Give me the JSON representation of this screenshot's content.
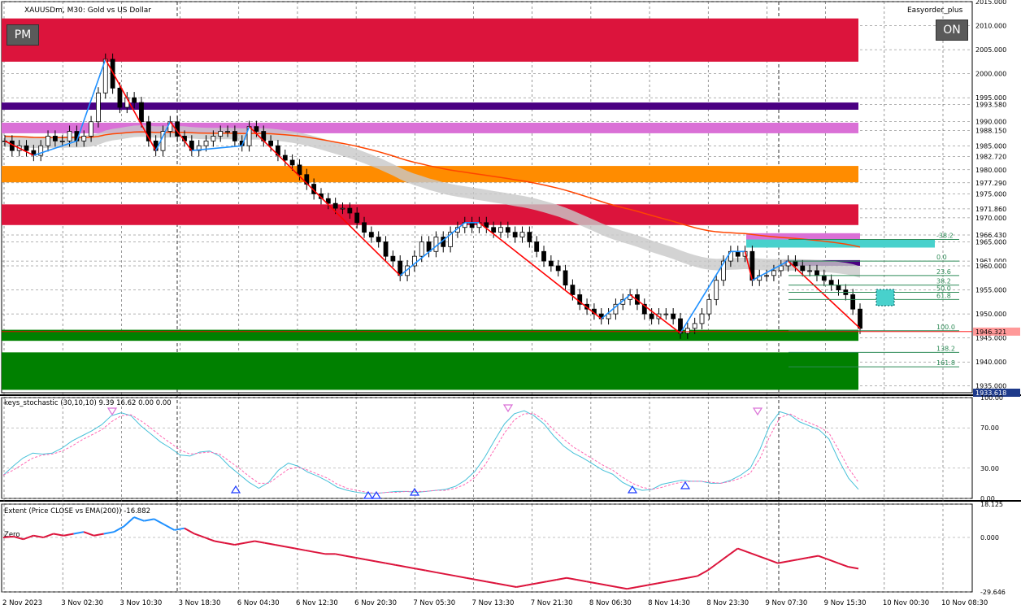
{
  "header": {
    "symbol_text": "XAUUSDm, M30:  Gold vs US Dollar",
    "expert": "Easyorder_plus",
    "pm_button": "PM",
    "on_button": "ON"
  },
  "colors": {
    "bull_candle": "#000000",
    "red_zone": "#dc143c",
    "green_zone": "#008000",
    "orange_zone": "#ff8c00",
    "violet_zone": "#da70d6",
    "indigo_zone": "#4b0082",
    "cyan_zone": "#48d1cc",
    "zigzag_down": "#ff0000",
    "zigzag_up": "#1e90ff",
    "ema": "#ff4500",
    "band": "#c8c8c8",
    "stoch_main": "#48c1d9",
    "stoch_signal": "#ff69b4",
    "extent_neg": "#dc143c",
    "extent_pos": "#1e90ff",
    "bid_line": "#ff0000"
  },
  "chart_data": [
    {
      "type": "candlestick",
      "title": "XAUUSDm, M30:  Gold vs US Dollar",
      "ylim": [
        1933.6,
        2015.0
      ],
      "y_ticks": [
        "2015.000",
        "2010.000",
        "2005.000",
        "2000.000",
        "1995.000",
        "1993.580",
        "1990.000",
        "1988.150",
        "1985.000",
        "1982.720",
        "1980.000",
        "1977.290",
        "1975.000",
        "1971.860",
        "1970.000",
        "1966.430",
        "1965.000",
        "1961.000",
        "1960.000",
        "1955.000",
        "1950.000",
        "1945.000",
        "1940.000",
        "1935.000"
      ],
      "current_price_box": "1946.321",
      "low_price_box": "1933.618",
      "x_ticks": [
        "2 Nov 2023",
        "3 Nov 02:30",
        "3 Nov 10:30",
        "3 Nov 18:30",
        "6 Nov 04:30",
        "6 Nov 12:30",
        "6 Nov 20:30",
        "7 Nov 05:30",
        "7 Nov 13:30",
        "7 Nov 21:30",
        "8 Nov 06:30",
        "8 Nov 14:30",
        "8 Nov 23:30",
        "9 Nov 07:30",
        "9 Nov 15:30",
        "10 Nov 00:30",
        "10 Nov 08:30"
      ],
      "close_path": [
        1986,
        1984,
        1985,
        1984,
        1983,
        1985,
        1987,
        1986,
        1986,
        1988,
        1986,
        1987,
        1990,
        1996,
        2003,
        1997,
        1993,
        1995,
        1994,
        1990,
        1986,
        1984,
        1988,
        1990,
        1987,
        1986,
        1984,
        1985,
        1986,
        1987,
        1988,
        1988,
        1986,
        1985,
        1989,
        1988,
        1986,
        1985,
        1983,
        1982,
        1981,
        1979,
        1977,
        1975,
        1974,
        1973,
        1972,
        1972,
        1971,
        1969,
        1967,
        1966,
        1965,
        1962,
        1961,
        1958,
        1960,
        1962,
        1965,
        1963,
        1966,
        1964,
        1967,
        1968,
        1969,
        1968,
        1969,
        1968,
        1967,
        1968,
        1967,
        1966,
        1967,
        1965,
        1963,
        1961,
        1960,
        1959,
        1956,
        1954,
        1952,
        1951,
        1950,
        1949,
        1950,
        1952,
        1953,
        1954,
        1952,
        1950,
        1949,
        1950,
        1950,
        1949,
        1946,
        1947,
        1948,
        1950,
        1953,
        1957,
        1961,
        1963,
        1962,
        1963,
        1957,
        1958,
        1958,
        1959,
        1960,
        1961,
        1960,
        1959,
        1959,
        1958,
        1957,
        1956,
        1955,
        1954,
        1951,
        1947
      ],
      "zones": [
        {
          "name": "red-top",
          "from": 2002.5,
          "to": 2011.5,
          "color": "#dc143c"
        },
        {
          "name": "indigo",
          "from": 1992.5,
          "to": 1994.0,
          "color": "#4b0082"
        },
        {
          "name": "violet",
          "from": 1987.6,
          "to": 1989.8,
          "color": "#da70d6"
        },
        {
          "name": "orange",
          "from": 1977.4,
          "to": 1980.8,
          "color": "#ff8c00"
        },
        {
          "name": "red-mid",
          "from": 1968.5,
          "to": 1972.8,
          "color": "#dc143c"
        },
        {
          "name": "green-thin",
          "from": 1944.4,
          "to": 1946.7,
          "color": "#008000"
        },
        {
          "name": "green-big",
          "from": 1934.2,
          "to": 1942.0,
          "color": "#008000"
        }
      ],
      "fibonacci": {
        "levels": [
          "-38.2",
          "0.0",
          "23.6",
          "38.2",
          "50.0",
          "61.8",
          "100.0",
          "138.2",
          "161.8"
        ],
        "prices": [
          1965.5,
          1961.0,
          1958.0,
          1956.0,
          1954.5,
          1953.0,
          1946.5,
          1942.0,
          1939.0
        ]
      }
    },
    {
      "type": "line",
      "title": "keys_stochastic (30,10,10) 9.39 16.62 0.00 0.00",
      "ylim": [
        0,
        100
      ],
      "y_ticks": [
        "100.00",
        "70.00",
        "30.00",
        "0.00"
      ],
      "series": [
        {
          "values": [
            23,
            32,
            40,
            45,
            44,
            45,
            50,
            57,
            62,
            67,
            73,
            82,
            85,
            82,
            72,
            64,
            56,
            50,
            43,
            42,
            46,
            47,
            42,
            32,
            24,
            16,
            10,
            16,
            28,
            35,
            32,
            26,
            22,
            17,
            11,
            8,
            6,
            5,
            5,
            6,
            7,
            7,
            6,
            7,
            8,
            9,
            12,
            18,
            27,
            41,
            58,
            74,
            84,
            87,
            82,
            74,
            62,
            52,
            45,
            40,
            34,
            28,
            24,
            16,
            11,
            8,
            9,
            14,
            16,
            18,
            17,
            17,
            15,
            15,
            18,
            23,
            30,
            49,
            73,
            86,
            83,
            76,
            72,
            68,
            59,
            38,
            20,
            9
          ]
        },
        {
          "values": [
            23,
            28,
            34,
            40,
            43,
            44,
            47,
            52,
            58,
            63,
            68,
            76,
            82,
            83,
            77,
            70,
            62,
            55,
            48,
            44,
            45,
            46,
            44,
            37,
            30,
            22,
            15,
            15,
            22,
            29,
            31,
            28,
            24,
            20,
            14,
            10,
            8,
            6,
            5,
            6,
            6,
            7,
            7,
            7,
            8,
            8,
            10,
            14,
            21,
            33,
            49,
            65,
            78,
            84,
            84,
            78,
            68,
            59,
            51,
            45,
            39,
            33,
            28,
            21,
            15,
            11,
            9,
            11,
            14,
            16,
            17,
            17,
            16,
            15,
            17,
            20,
            25,
            40,
            62,
            80,
            84,
            79,
            75,
            71,
            65,
            48,
            30,
            16
          ]
        }
      ]
    },
    {
      "type": "line",
      "title": "Extent (Price CLOSE vs EMA(200)) -16.882",
      "ylim": [
        -29.646,
        18.125
      ],
      "y_ticks": [
        "18.125",
        "0.000",
        "-29.646"
      ],
      "zero_label": "Zero",
      "series": [
        {
          "values": [
            0,
            0.5,
            -1,
            1,
            0,
            2,
            1,
            2,
            3,
            1,
            2,
            3,
            6,
            11,
            9,
            10,
            7,
            4,
            5,
            2,
            0,
            -2,
            -3,
            -4,
            -3,
            -2,
            -3,
            -4,
            -5,
            -6,
            -7,
            -8,
            -9,
            -9,
            -10,
            -11,
            -12,
            -13,
            -14,
            -15,
            -16,
            -17,
            -18,
            -19,
            -20,
            -21,
            -22,
            -23,
            -24,
            -25,
            -26,
            -27,
            -26,
            -25,
            -24,
            -23,
            -22,
            -23,
            -24,
            -25,
            -26,
            -27,
            -28,
            -27,
            -26,
            -25,
            -24,
            -23,
            -22,
            -21,
            -18,
            -14,
            -10,
            -6,
            -8,
            -10,
            -12,
            -14,
            -13,
            -12,
            -11,
            -10,
            -12,
            -14,
            -16,
            -17
          ]
        }
      ]
    }
  ]
}
